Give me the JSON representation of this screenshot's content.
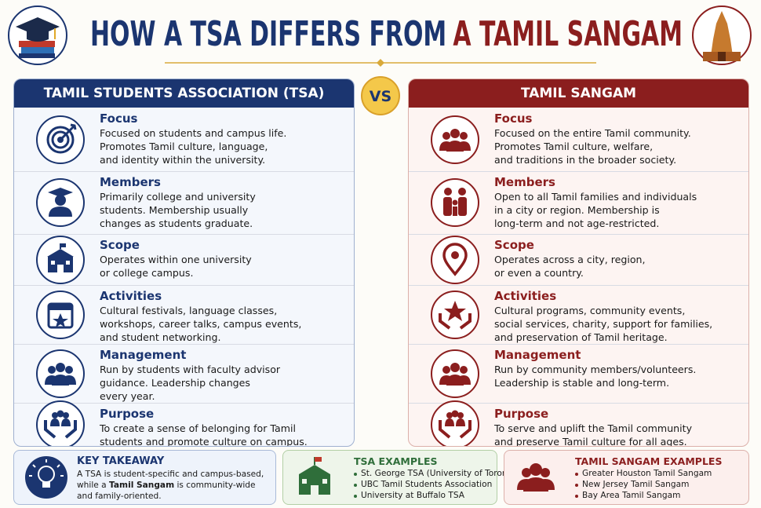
{
  "header": {
    "title_part1": "HOW A TSA DIFFERS FROM",
    "title_part2": "A TAMIL SANGAM"
  },
  "left": {
    "heading": "TAMIL STUDENTS ASSOCIATION (TSA)",
    "rows": [
      {
        "title": "Focus",
        "lines": [
          "Focused on students and campus life.",
          "Promotes Tamil culture, language,",
          "and identity within the university."
        ]
      },
      {
        "title": "Members",
        "lines": [
          "Primarily college and university",
          "students. Membership usually",
          "changes as students graduate."
        ]
      },
      {
        "title": "Scope",
        "lines": [
          "Operates within one university",
          "or college campus."
        ]
      },
      {
        "title": "Activities",
        "lines": [
          "Cultural festivals, language classes,",
          "workshops, career talks, campus events,",
          "and student networking."
        ]
      },
      {
        "title": "Management",
        "lines": [
          "Run by students with faculty advisor",
          "guidance. Leadership changes",
          "every year."
        ]
      },
      {
        "title": "Purpose",
        "lines": [
          "To create a sense of belonging for Tamil",
          "students and promote culture on campus."
        ]
      }
    ]
  },
  "vs": "VS",
  "right": {
    "heading": "TAMIL SANGAM",
    "rows": [
      {
        "title": "Focus",
        "lines": [
          "Focused on the entire Tamil community.",
          "Promotes Tamil culture, welfare,",
          "and traditions in the broader society."
        ]
      },
      {
        "title": "Members",
        "lines": [
          "Open to all Tamil families and individuals",
          "in a city or region. Membership is",
          "long-term and not age-restricted."
        ]
      },
      {
        "title": "Scope",
        "lines": [
          "Operates across a city, region,",
          "or even a country."
        ]
      },
      {
        "title": "Activities",
        "lines": [
          "Cultural programs, community events,",
          "social services, charity, support for families,",
          "and preservation of Tamil heritage."
        ]
      },
      {
        "title": "Management",
        "lines": [
          "Run by community members/volunteers.",
          "Leadership is stable and long-term."
        ]
      },
      {
        "title": "Purpose",
        "lines": [
          "To serve and uplift the Tamil community",
          "and preserve Tamil culture for all ages."
        ]
      }
    ]
  },
  "takeaway": {
    "title": "KEY TAKEAWAY",
    "line1": "A TSA is student-specific and campus-based,",
    "line2_before": "while a ",
    "line2_bold": "Tamil Sangam",
    "line2_after": " is community-wide",
    "line3": "and family-oriented."
  },
  "tsa_examples": {
    "title": "TSA EXAMPLES",
    "items": [
      "St. George TSA (University of Toronto)",
      "UBC Tamil Students Association",
      "University at Buffalo TSA"
    ]
  },
  "sangam_examples": {
    "title": "TAMIL SANGAM EXAMPLES",
    "items": [
      "Greater Houston Tamil Sangam",
      "New Jersey Tamil Sangam",
      "Bay Area Tamil Sangam"
    ]
  }
}
